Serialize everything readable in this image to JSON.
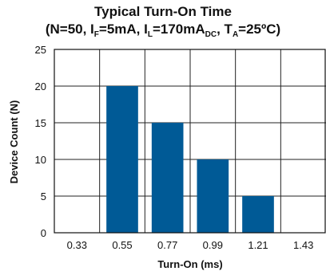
{
  "chart_data": {
    "type": "bar",
    "title": "Typical Turn-On Time",
    "subtitle_parts": {
      "prefix": "(N=50, I",
      "if_sub": "F",
      "if_val": "=5mA, I",
      "il_sub": "L",
      "il_val": "=170mA",
      "dc_sub": "DC",
      "ta_pre": ", T",
      "ta_sub": "A",
      "ta_val": "=25ºC)"
    },
    "xlabel": "Turn-On (ms)",
    "ylabel": "Device Count (N)",
    "categories": [
      "0.33",
      "0.55",
      "0.77",
      "0.99",
      "1.21",
      "1.43"
    ],
    "values": [
      0,
      20,
      15,
      10,
      5,
      0
    ],
    "ylim": [
      0,
      25
    ],
    "yticks": [
      0,
      5,
      10,
      15,
      20,
      25
    ],
    "grid": true,
    "bar_color": "#005a96",
    "grid_color": "#222222"
  }
}
